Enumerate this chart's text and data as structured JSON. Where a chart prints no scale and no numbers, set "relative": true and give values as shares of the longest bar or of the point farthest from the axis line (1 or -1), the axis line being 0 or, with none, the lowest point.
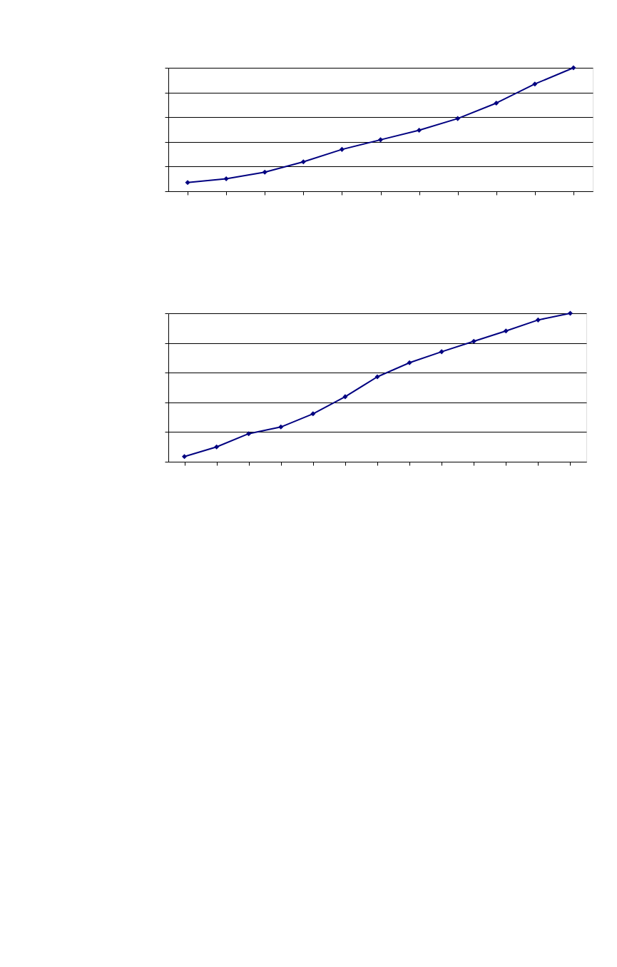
{
  "chart_data": [
    {
      "type": "line",
      "relative": true,
      "categories": [
        null,
        null,
        null,
        null,
        null,
        null,
        null,
        null,
        null,
        null,
        null
      ],
      "grid": "y",
      "marker": "diamond",
      "line_style": "solid",
      "series": [
        {
          "color": "#000080",
          "values": [
            0.071,
            0.101,
            0.155,
            0.238,
            0.339,
            0.417,
            0.494,
            0.589,
            0.714,
            0.869,
            1
          ]
        }
      ]
    },
    {
      "type": "line",
      "relative": true,
      "categories": [
        null,
        null,
        null,
        null,
        null,
        null,
        null,
        null,
        null,
        null,
        null,
        null,
        null
      ],
      "grid": "y",
      "marker": "diamond",
      "line_style": "solid",
      "series": [
        {
          "color": "#000080",
          "values": [
            0.035,
            0.1,
            0.189,
            0.234,
            0.323,
            0.438,
            0.572,
            0.667,
            0.741,
            0.811,
            0.881,
            0.955,
            1
          ]
        }
      ]
    }
  ]
}
